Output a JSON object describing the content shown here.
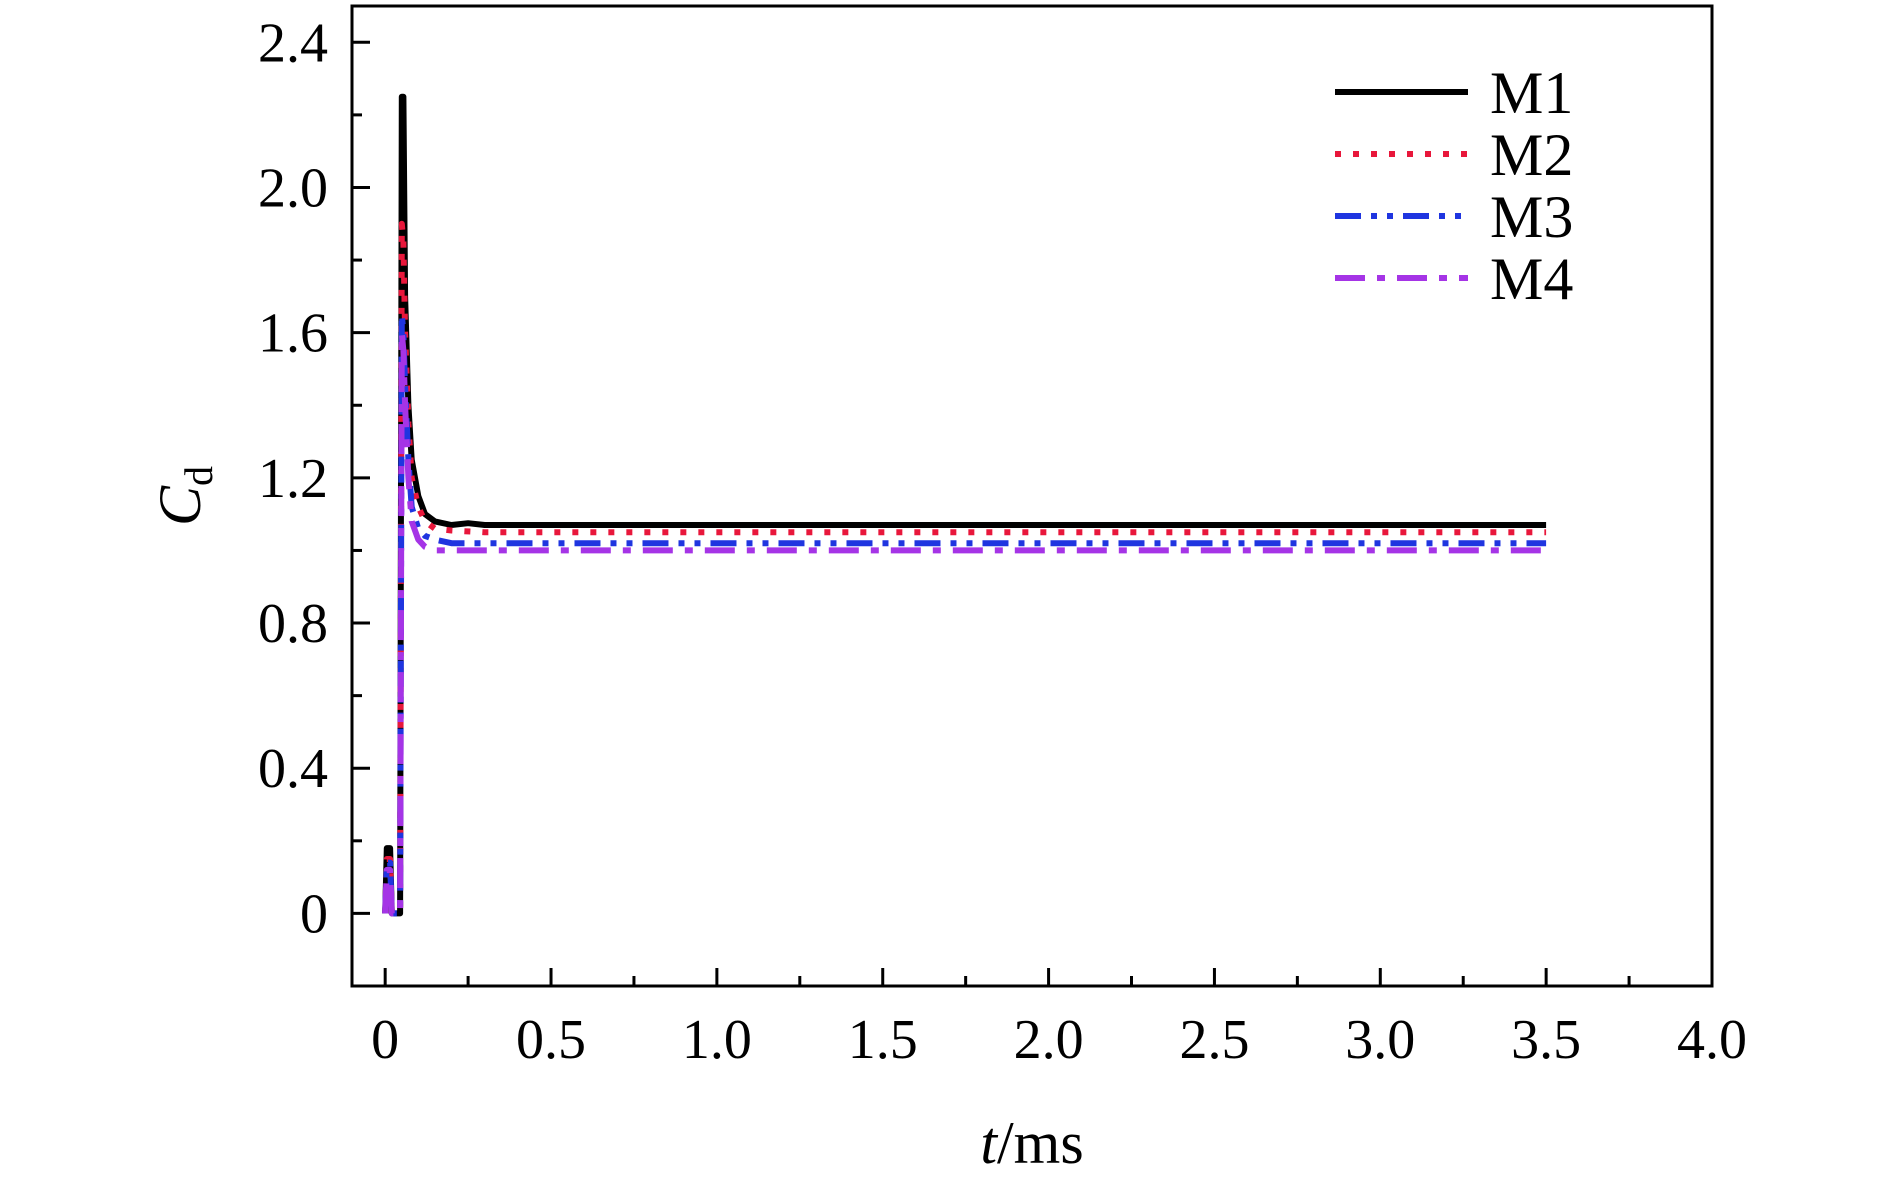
{
  "chart_data": {
    "type": "line",
    "xlabel": "t/ms",
    "xlabel_parts": {
      "var": "t",
      "unit": "/ms"
    },
    "ylabel": "Cd",
    "ylabel_parts": {
      "var": "C",
      "sub": "d"
    },
    "xlim": [
      -0.1,
      4.0
    ],
    "ylim": [
      -0.2,
      2.5
    ],
    "x_ticks": [
      0,
      0.5,
      1.0,
      1.5,
      2.0,
      2.5,
      3.0,
      3.5,
      4.0
    ],
    "x_tick_labels": [
      "0",
      "0.5",
      "1.0",
      "1.5",
      "2.0",
      "2.5",
      "3.0",
      "3.5",
      "4.0"
    ],
    "y_ticks": [
      0,
      0.4,
      0.8,
      1.2,
      1.6,
      2.0,
      2.4
    ],
    "y_tick_labels": [
      "0",
      "0.4",
      "0.8",
      "1.2",
      "1.6",
      "2.0",
      "2.4"
    ],
    "grid": false,
    "legend_position": "top-right",
    "series": [
      {
        "name": "M1",
        "color": "#000000",
        "dash": "solid",
        "x": [
          0,
          0.005,
          0.015,
          0.02,
          0.03,
          0.045,
          0.05,
          0.055,
          0.06,
          0.07,
          0.08,
          0.1,
          0.12,
          0.15,
          0.2,
          0.25,
          0.3,
          0.5,
          1.0,
          1.5,
          2.0,
          2.5,
          3.0,
          3.5
        ],
        "y": [
          0,
          0.18,
          0.18,
          0,
          0,
          0,
          2.25,
          2.25,
          1.7,
          1.4,
          1.25,
          1.15,
          1.1,
          1.08,
          1.07,
          1.075,
          1.07,
          1.07,
          1.07,
          1.07,
          1.07,
          1.07,
          1.07,
          1.07
        ]
      },
      {
        "name": "M2",
        "color": "#e8173b",
        "dash": "dotted",
        "x": [
          0,
          0.005,
          0.015,
          0.02,
          0.03,
          0.045,
          0.05,
          0.055,
          0.06,
          0.07,
          0.08,
          0.1,
          0.12,
          0.15,
          0.2,
          0.3,
          0.5,
          1.0,
          1.5,
          2.0,
          2.5,
          3.0,
          3.5
        ],
        "y": [
          0,
          0.15,
          0.15,
          0,
          0,
          0,
          1.9,
          1.85,
          1.6,
          1.35,
          1.2,
          1.12,
          1.08,
          1.06,
          1.055,
          1.05,
          1.05,
          1.05,
          1.05,
          1.05,
          1.05,
          1.05,
          1.05
        ]
      },
      {
        "name": "M3",
        "color": "#1f35e0",
        "dash": "dash-dot-dot",
        "x": [
          0,
          0.005,
          0.015,
          0.02,
          0.03,
          0.045,
          0.05,
          0.055,
          0.06,
          0.07,
          0.08,
          0.1,
          0.12,
          0.15,
          0.2,
          0.3,
          0.5,
          1.0,
          1.5,
          2.0,
          2.5,
          3.0,
          3.5
        ],
        "y": [
          0,
          0.14,
          0.14,
          0,
          0,
          0,
          1.65,
          1.6,
          1.45,
          1.25,
          1.12,
          1.06,
          1.04,
          1.03,
          1.02,
          1.02,
          1.02,
          1.02,
          1.02,
          1.02,
          1.02,
          1.02,
          1.02
        ]
      },
      {
        "name": "M4",
        "color": "#a534e6",
        "dash": "dash-dot",
        "x": [
          0,
          0.005,
          0.015,
          0.02,
          0.03,
          0.045,
          0.05,
          0.055,
          0.06,
          0.07,
          0.08,
          0.1,
          0.12,
          0.15,
          0.2,
          0.3,
          0.5,
          1.0,
          1.5,
          2.0,
          2.5,
          3.0,
          3.5
        ],
        "y": [
          0,
          0.12,
          0.12,
          0,
          0,
          0,
          1.6,
          1.55,
          1.4,
          1.2,
          1.08,
          1.03,
          1.01,
          1.0,
          1.0,
          1.0,
          1.0,
          1.0,
          1.0,
          1.0,
          1.0,
          1.0,
          1.0
        ]
      }
    ]
  }
}
